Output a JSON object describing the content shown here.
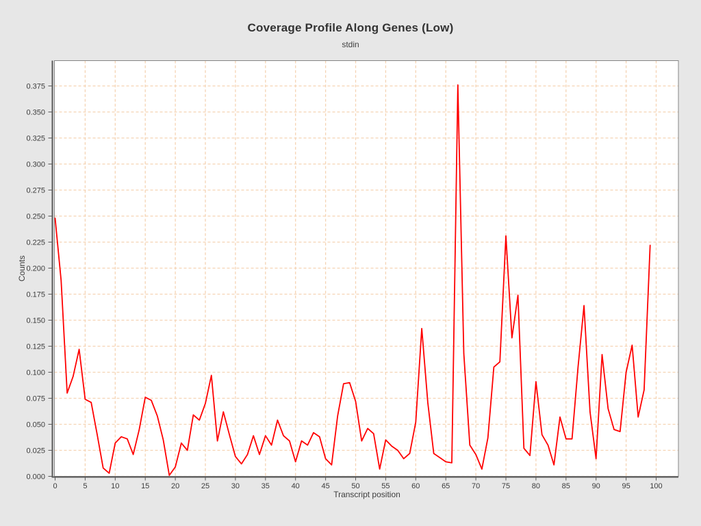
{
  "figure": {
    "background": "#e7e7e7",
    "title": "Coverage Profile Along Genes (Low)",
    "subtitle": "stdin"
  },
  "chart_data": {
    "type": "line",
    "title": "Coverage Profile Along Genes (Low)",
    "subtitle": "stdin",
    "xlabel": "Transcript position",
    "ylabel": "Counts",
    "grid": true,
    "legend": "none",
    "xlim": [
      -0.5,
      103.5
    ],
    "ylim": [
      0,
      0.399
    ],
    "x_ticks": [
      0,
      5,
      10,
      15,
      20,
      25,
      30,
      35,
      40,
      45,
      50,
      55,
      60,
      65,
      70,
      75,
      80,
      85,
      90,
      95,
      100
    ],
    "y_ticks": [
      "0.000",
      "0.025",
      "0.050",
      "0.075",
      "0.100",
      "0.125",
      "0.150",
      "0.175",
      "0.200",
      "0.225",
      "0.250",
      "0.275",
      "0.300",
      "0.325",
      "0.350",
      "0.375"
    ],
    "colors": {
      "series": "#ff0000",
      "grid": "#f5d3b3",
      "plot_background": "#ffffff",
      "plot_border": "#848484",
      "axis": "#5a5a5a",
      "text": "#3d3d3d",
      "figure_background": "#e7e7e7"
    },
    "series": [
      {
        "name": "stdin",
        "x": [
          0,
          1,
          2,
          3,
          4,
          5,
          6,
          7,
          8,
          9,
          10,
          11,
          12,
          13,
          14,
          15,
          16,
          17,
          18,
          19,
          20,
          21,
          22,
          23,
          24,
          25,
          26,
          27,
          28,
          29,
          30,
          31,
          32,
          33,
          34,
          35,
          36,
          37,
          38,
          39,
          40,
          41,
          42,
          43,
          44,
          45,
          46,
          47,
          48,
          49,
          50,
          51,
          52,
          53,
          54,
          55,
          56,
          57,
          58,
          59,
          60,
          61,
          62,
          63,
          64,
          65,
          66,
          67,
          68,
          69,
          70,
          71,
          72,
          73,
          74,
          75,
          76,
          77,
          78,
          79,
          80,
          81,
          82,
          83,
          84,
          85,
          86,
          87,
          88,
          89,
          90,
          91,
          92,
          93,
          94,
          95,
          96,
          97,
          98,
          99
        ],
        "values": [
          0.248,
          0.188,
          0.08,
          0.096,
          0.122,
          0.074,
          0.071,
          0.04,
          0.008,
          0.003,
          0.032,
          0.038,
          0.036,
          0.021,
          0.045,
          0.076,
          0.073,
          0.058,
          0.035,
          0.001,
          0.009,
          0.032,
          0.025,
          0.059,
          0.054,
          0.07,
          0.097,
          0.034,
          0.062,
          0.04,
          0.019,
          0.012,
          0.021,
          0.039,
          0.021,
          0.039,
          0.03,
          0.054,
          0.039,
          0.034,
          0.014,
          0.034,
          0.03,
          0.042,
          0.038,
          0.017,
          0.011,
          0.058,
          0.089,
          0.09,
          0.072,
          0.034,
          0.046,
          0.041,
          0.007,
          0.035,
          0.029,
          0.025,
          0.017,
          0.022,
          0.052,
          0.142,
          0.071,
          0.022,
          0.018,
          0.014,
          0.013,
          0.376,
          0.118,
          0.03,
          0.021,
          0.007,
          0.037,
          0.105,
          0.11,
          0.231,
          0.133,
          0.174,
          0.027,
          0.02,
          0.091,
          0.04,
          0.03,
          0.011,
          0.057,
          0.036,
          0.036,
          0.105,
          0.164,
          0.062,
          0.017,
          0.117,
          0.065,
          0.045,
          0.043,
          0.1,
          0.126,
          0.057,
          0.083,
          0.222
        ]
      }
    ]
  }
}
